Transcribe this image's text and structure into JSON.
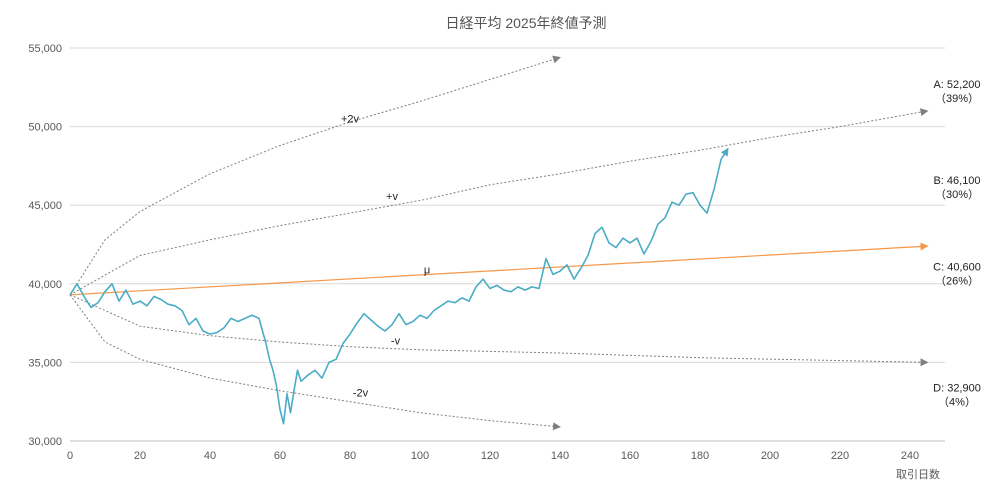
{
  "chart_data": {
    "type": "line",
    "title": "日経平均 2025年終値予測",
    "xlabel": "取引日数",
    "ylabel": "",
    "xlim": [
      0,
      250
    ],
    "ylim": [
      30000,
      55000
    ],
    "x_ticks": [
      0,
      20,
      40,
      60,
      80,
      100,
      120,
      140,
      160,
      180,
      200,
      220,
      240
    ],
    "y_ticks": [
      30000,
      35000,
      40000,
      45000,
      50000,
      55000
    ],
    "y_tick_labels": [
      "30,000",
      "35,000",
      "40,000",
      "45,000",
      "50,000",
      "55,000"
    ],
    "grid": "horizontal",
    "series": [
      {
        "color": "#4BACC6",
        "x": [
          0,
          2,
          4,
          6,
          8,
          10,
          12,
          14,
          16,
          18,
          20,
          22,
          24,
          26,
          28,
          30,
          32,
          34,
          36,
          38,
          40,
          42,
          44,
          46,
          48,
          50,
          52,
          54,
          56,
          57,
          58,
          59,
          60,
          61,
          62,
          63,
          64,
          65,
          66,
          68,
          70,
          72,
          74,
          76,
          78,
          80,
          82,
          84,
          86,
          88,
          90,
          92,
          94,
          96,
          98,
          100,
          102,
          104,
          106,
          108,
          110,
          112,
          114,
          116,
          118,
          120,
          122,
          124,
          126,
          128,
          130,
          132,
          134,
          136,
          138,
          140,
          142,
          144,
          146,
          148,
          150,
          152,
          154,
          156,
          158,
          160,
          162,
          164,
          166,
          168,
          170,
          172,
          174,
          176,
          178,
          180,
          182,
          184,
          186,
          188
        ],
        "y": [
          39300,
          40000,
          39200,
          38500,
          38800,
          39500,
          40000,
          38900,
          39600,
          38700,
          38900,
          38600,
          39200,
          39000,
          38700,
          38600,
          38300,
          37400,
          37800,
          37000,
          36800,
          36900,
          37200,
          37800,
          37600,
          37800,
          38000,
          37800,
          36200,
          35200,
          34500,
          33500,
          32000,
          31100,
          33000,
          31800,
          33200,
          34500,
          33800,
          34200,
          34500,
          34000,
          35000,
          35200,
          36200,
          36800,
          37500,
          38100,
          37700,
          37300,
          37000,
          37400,
          38100,
          37400,
          37600,
          38000,
          37800,
          38300,
          38600,
          38900,
          38800,
          39100,
          38900,
          39800,
          40300,
          39700,
          39900,
          39600,
          39500,
          39800,
          39600,
          39800,
          39700,
          41600,
          40600,
          40800,
          41200,
          40300,
          41000,
          41800,
          43200,
          43600,
          42600,
          42300,
          42900,
          42600,
          42900,
          41900,
          42700,
          43800,
          44200,
          45200,
          45000,
          45700,
          45800,
          45000,
          44500,
          46000,
          47900,
          48600
        ]
      },
      {
        "name": "μ",
        "color": "#F79646",
        "x": [
          0,
          245
        ],
        "y": [
          39300,
          42400
        ]
      },
      {
        "name": "+v",
        "color": "#7F7F7F",
        "dashed": true,
        "x": [
          0,
          20,
          40,
          60,
          80,
          100,
          120,
          140,
          160,
          180,
          200,
          220,
          245
        ],
        "y": [
          39300,
          41800,
          42800,
          43700,
          44500,
          45300,
          46300,
          47000,
          47800,
          48500,
          49300,
          50000,
          51000
        ]
      },
      {
        "name": "+2v",
        "color": "#7F7F7F",
        "dashed": true,
        "x": [
          0,
          10,
          20,
          40,
          60,
          80,
          100,
          120,
          140
        ],
        "y": [
          39300,
          42800,
          44600,
          47000,
          48800,
          50300,
          51600,
          53000,
          54400
        ]
      },
      {
        "name": "-v",
        "color": "#7F7F7F",
        "dashed": true,
        "x": [
          0,
          20,
          40,
          60,
          80,
          100,
          140,
          180,
          245
        ],
        "y": [
          39300,
          37300,
          36700,
          36300,
          36000,
          35800,
          35600,
          35300,
          35000
        ]
      },
      {
        "name": "-2v",
        "color": "#7F7F7F",
        "dashed": true,
        "x": [
          0,
          10,
          20,
          40,
          60,
          80,
          100,
          120,
          140
        ],
        "y": [
          39300,
          36300,
          35200,
          34000,
          33200,
          32500,
          31800,
          31300,
          30900
        ]
      }
    ],
    "annotations": [
      {
        "text": "A: 52,200",
        "sub": "（39%）",
        "value": 52200,
        "pct": 39
      },
      {
        "text": "B: 46,100",
        "sub": "（30%）",
        "value": 46100,
        "pct": 30
      },
      {
        "text": "C: 40,600",
        "sub": "（26%）",
        "value": 40600,
        "pct": 26
      },
      {
        "text": "D: 32,900",
        "sub": "（4%）",
        "value": 32900,
        "pct": 4
      }
    ],
    "curve_labels": [
      {
        "text": "+2v",
        "x": 80,
        "y": 50500
      },
      {
        "text": "+v",
        "x": 92,
        "y": 45600
      },
      {
        "text": "μ",
        "x": 102,
        "y": 40900
      },
      {
        "text": "-v",
        "x": 93,
        "y": 36400
      },
      {
        "text": "-2v",
        "x": 83,
        "y": 33100
      }
    ]
  }
}
